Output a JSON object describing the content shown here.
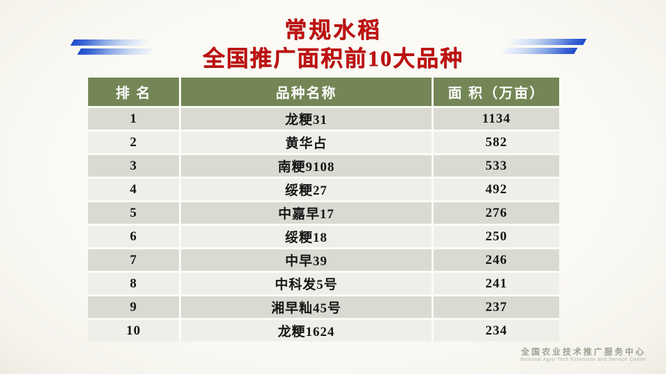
{
  "title": {
    "line1": "常规水稻",
    "line2": "全国推广面积前10大品种",
    "color": "#bf1212"
  },
  "table": {
    "columns": [
      "排 名",
      "品种名称",
      "面 积（万亩）"
    ],
    "rows": [
      {
        "rank": "1",
        "variety": "龙粳31",
        "area": "1134"
      },
      {
        "rank": "2",
        "variety": "黄华占",
        "area": "582"
      },
      {
        "rank": "3",
        "variety": "南粳9108",
        "area": "533"
      },
      {
        "rank": "4",
        "variety": "绥粳27",
        "area": "492"
      },
      {
        "rank": "5",
        "variety": "中嘉早17",
        "area": "276"
      },
      {
        "rank": "6",
        "variety": "绥粳18",
        "area": "250"
      },
      {
        "rank": "7",
        "variety": "中早39",
        "area": "246"
      },
      {
        "rank": "8",
        "variety": "中科发5号",
        "area": "241"
      },
      {
        "rank": "9",
        "variety": "湘早籼45号",
        "area": "237"
      },
      {
        "rank": "10",
        "variety": "龙粳1624",
        "area": "234"
      }
    ],
    "header_bg": "#748655",
    "row_bg_dark": "#d9dbd3",
    "row_bg_light": "#edefe8"
  },
  "watermark": {
    "chinese": "全国农业技术推广服务中心",
    "english": "National Agro-Tech Extension and Service Center"
  },
  "decor": {
    "bar_color_dark": "#1e4bcb",
    "bar_color_light": "#e4ecf9"
  },
  "chart_data": {
    "type": "table",
    "title": "常规水稻 全国推广面积前10大品种",
    "columns": [
      "排 名",
      "品种名称",
      "面 积（万亩）"
    ],
    "rows": [
      [
        "1",
        "龙粳31",
        1134
      ],
      [
        "2",
        "黄华占",
        582
      ],
      [
        "3",
        "南粳9108",
        533
      ],
      [
        "4",
        "绥粳27",
        492
      ],
      [
        "5",
        "中嘉早17",
        276
      ],
      [
        "6",
        "绥粳18",
        250
      ],
      [
        "7",
        "中早39",
        246
      ],
      [
        "8",
        "中科发5号",
        241
      ],
      [
        "9",
        "湘早籼45号",
        237
      ],
      [
        "10",
        "龙粳1624",
        234
      ]
    ],
    "units": "万亩",
    "notes": "ranked list of top 10 conventional rice varieties by national promotion area"
  }
}
